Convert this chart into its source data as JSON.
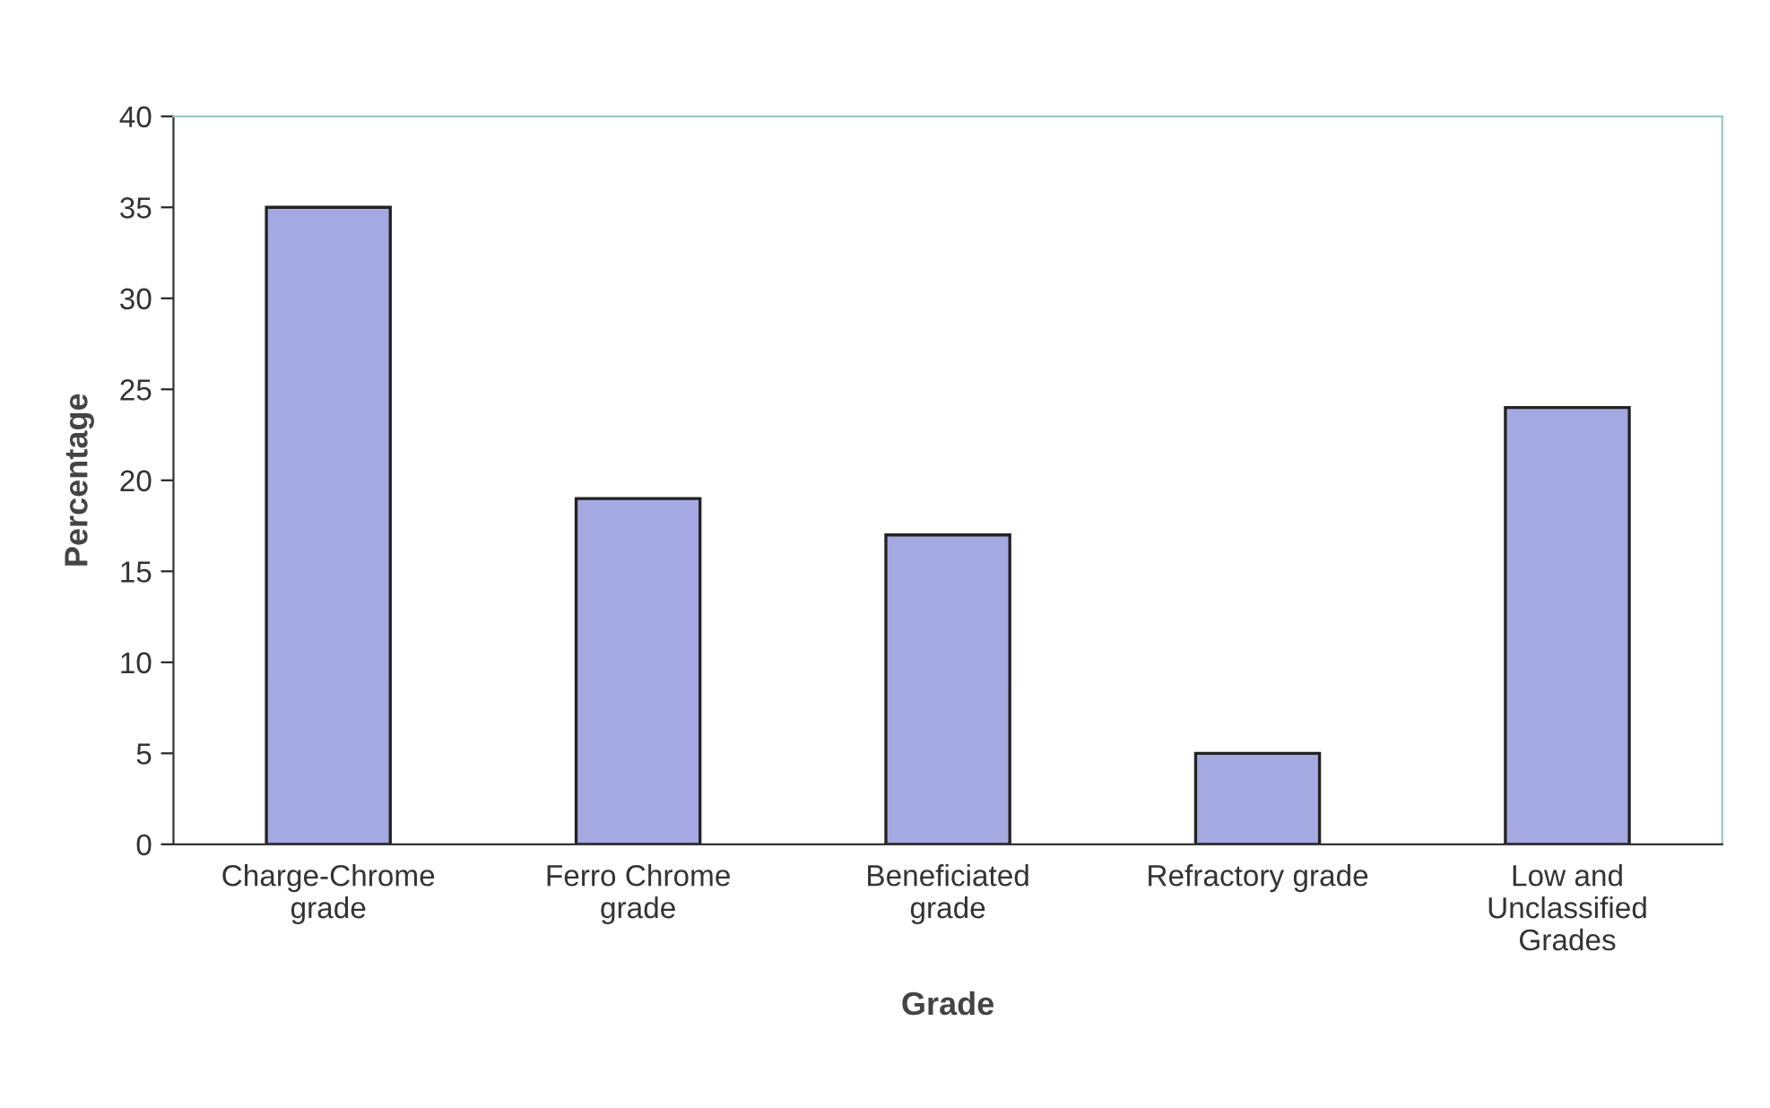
{
  "chart_data": {
    "type": "bar",
    "xlabel": "Grade",
    "ylabel": "Percentage",
    "categories": [
      "Charge-Chrome\ngrade",
      "Ferro Chrome\ngrade",
      "Beneficiated\ngrade",
      "Refractory grade",
      "Low and\nUnclassified\nGrades"
    ],
    "values": [
      35,
      19,
      17,
      5,
      24
    ],
    "color": "#a4a9e2",
    "ylim": [
      0,
      40
    ],
    "yticks": [
      0,
      5,
      10,
      15,
      20,
      25,
      30,
      35,
      40
    ],
    "grid": false,
    "legend": false
  }
}
